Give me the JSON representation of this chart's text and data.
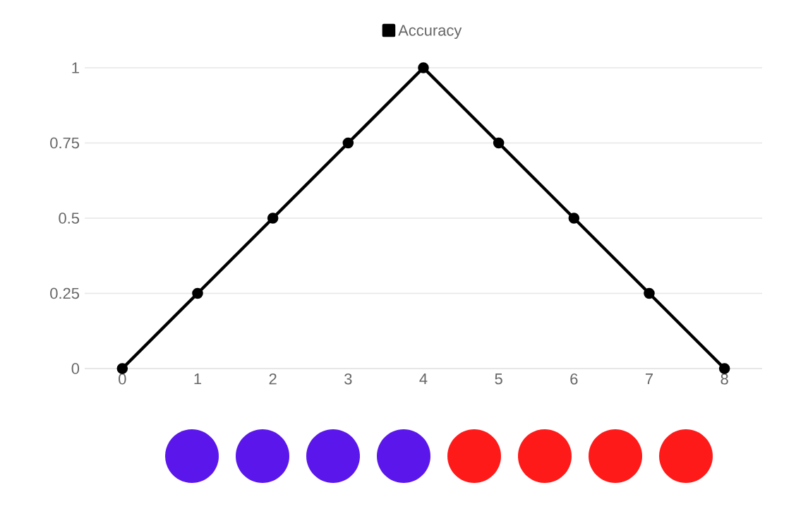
{
  "chart_data": {
    "type": "line",
    "x": [
      0,
      1,
      2,
      3,
      4,
      5,
      6,
      7,
      8
    ],
    "series": [
      {
        "name": "Accuracy",
        "color": "#000000",
        "values": [
          0,
          0.25,
          0.5,
          0.75,
          1,
          0.75,
          0.5,
          0.25,
          0
        ]
      }
    ],
    "xlim": [
      -0.5,
      8.5
    ],
    "xticks": [
      0,
      1,
      2,
      3,
      4,
      5,
      6,
      7,
      8
    ],
    "ylim": [
      0,
      1
    ],
    "yticks": [
      0,
      0.25,
      0.5,
      0.75,
      1
    ],
    "grid": "y",
    "legend": "top",
    "marker": "circle",
    "line_style": "solid"
  }
}
